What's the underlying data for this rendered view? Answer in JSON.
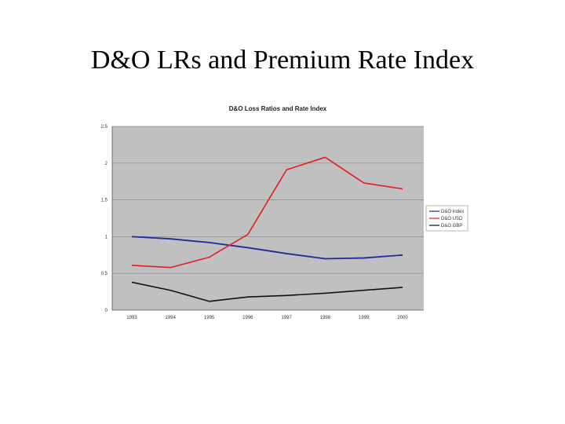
{
  "slide": {
    "title": "D&O LRs and Premium Rate Index"
  },
  "chart_data": {
    "type": "line",
    "title": "D&O Loss Ratios and Rate Index",
    "xlabel": "",
    "ylabel": "",
    "categories": [
      "1993",
      "1994",
      "1995",
      "1996",
      "1997",
      "1998",
      "1999",
      "2000"
    ],
    "ylim": [
      0,
      2.5
    ],
    "yticks": [
      "0",
      "0.5",
      "1",
      "1.5",
      "2",
      "2.5"
    ],
    "grid": true,
    "legend": "right",
    "plot_background": "#c0c0c0",
    "series": [
      {
        "name": "D&O Index",
        "color": "#1f2a9e",
        "values": [
          1.0,
          0.97,
          0.92,
          0.85,
          0.77,
          0.7,
          0.71,
          0.75
        ]
      },
      {
        "name": "D&O USD",
        "color": "#e02020",
        "values": [
          0.61,
          0.58,
          0.72,
          1.03,
          1.91,
          2.08,
          1.73,
          1.65
        ]
      },
      {
        "name": "D&O GBP",
        "color": "#111111",
        "values": [
          0.38,
          0.27,
          0.12,
          0.18,
          0.2,
          0.23,
          0.27,
          0.31
        ]
      }
    ]
  }
}
